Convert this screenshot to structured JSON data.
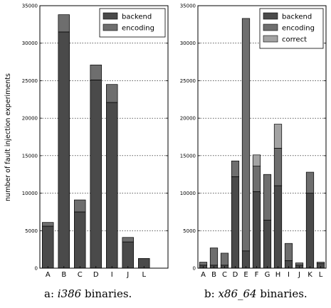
{
  "colors": {
    "backend": "#4a4a4a",
    "encoding": "#6e6e6e",
    "correct": "#a3a3a3"
  },
  "ylabel": "number of fault injection experiments",
  "captions": [
    {
      "prefix": "a: ",
      "arch": "i386",
      "suffix": " binaries."
    },
    {
      "prefix": "b: ",
      "arch": "x86_64",
      "suffix": " binaries."
    }
  ],
  "chart_data": [
    {
      "type": "bar",
      "stacked": true,
      "categories": [
        "A",
        "B",
        "C",
        "D",
        "I",
        "J",
        "L"
      ],
      "series": [
        {
          "name": "backend",
          "values": [
            5600,
            31500,
            7500,
            25100,
            22100,
            3500,
            1300
          ]
        },
        {
          "name": "encoding",
          "values": [
            500,
            2300,
            1600,
            2000,
            2400,
            600,
            0
          ]
        }
      ],
      "ylim": [
        0,
        35000
      ],
      "yticks": [
        0,
        5000,
        10000,
        15000,
        20000,
        25000,
        30000,
        35000
      ],
      "legend": "top-right"
    },
    {
      "type": "bar",
      "stacked": true,
      "categories": [
        "A",
        "B",
        "C",
        "D",
        "E",
        "F",
        "G",
        "H",
        "I",
        "J",
        "K",
        "L"
      ],
      "series": [
        {
          "name": "backend",
          "values": [
            400,
            400,
            400,
            12200,
            2300,
            10200,
            6400,
            11000,
            1000,
            400,
            10000,
            600
          ]
        },
        {
          "name": "encoding",
          "values": [
            400,
            2300,
            1600,
            2100,
            31000,
            3400,
            6100,
            5000,
            2300,
            300,
            2800,
            200
          ]
        },
        {
          "name": "correct",
          "values": [
            0,
            0,
            0,
            0,
            0,
            1500,
            0,
            3200,
            0,
            0,
            0,
            0
          ]
        }
      ],
      "ylim": [
        0,
        35000
      ],
      "yticks": [
        0,
        5000,
        10000,
        15000,
        20000,
        25000,
        30000,
        35000
      ],
      "legend": "top-right"
    }
  ]
}
